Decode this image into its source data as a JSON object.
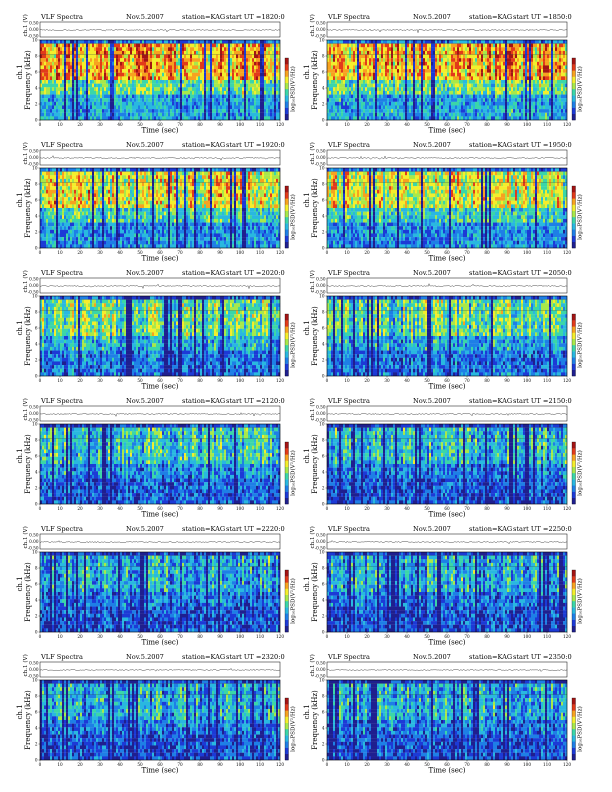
{
  "document": {
    "header_label": "VLF Spectra",
    "date": "Nov.5.2007",
    "station": "station=KAG",
    "start_prefix": "start  UT  ="
  },
  "colormap": [
    "#1f1f8f",
    "#1c3ad6",
    "#1e7fe6",
    "#29b8e0",
    "#3bd6a8",
    "#a8e84a",
    "#f4ee2c",
    "#f7a21f",
    "#e23a1a",
    "#a31414"
  ],
  "chart_data": [
    {
      "type": "heatmap",
      "panel": 1,
      "start_ut": "1820:0",
      "activity": 0.82,
      "xlabel": "Time  (sec)",
      "ylabel_freq": "Frequency  (kHz)",
      "ylabel_ch": "ch.1 (V)",
      "ch_label": "ch.1",
      "colorbar_label": "log₁₀PSD(V²/Hz)",
      "xlim": [
        0,
        120
      ],
      "ylim": [
        0,
        10
      ],
      "x_ticks": [
        "0",
        "10",
        "20",
        "30",
        "40",
        "50",
        "60",
        "70",
        "80",
        "90",
        "100",
        "110",
        "120"
      ],
      "y_ticks": [
        "0",
        "2",
        "4",
        "6",
        "8",
        "10"
      ],
      "v_ticks": [
        "-0.50",
        "0.00",
        "0.50"
      ]
    },
    {
      "type": "heatmap",
      "panel": 2,
      "start_ut": "1850:0",
      "activity": 0.8,
      "xlabel": "Time  (sec)",
      "ylabel_freq": "Frequency  (kHz)",
      "ylabel_ch": "ch.1 (V)",
      "ch_label": "ch.1",
      "colorbar_label": "log₁₀PSD(V²/Hz)",
      "xlim": [
        0,
        120
      ],
      "ylim": [
        0,
        10
      ],
      "x_ticks": [
        "0",
        "10",
        "20",
        "30",
        "40",
        "50",
        "60",
        "70",
        "80",
        "90",
        "100",
        "110",
        "120"
      ],
      "y_ticks": [
        "0",
        "2",
        "4",
        "6",
        "8",
        "10"
      ],
      "v_ticks": [
        "-0.50",
        "0.00",
        "0.50"
      ]
    },
    {
      "type": "heatmap",
      "panel": 3,
      "start_ut": "1920:0",
      "activity": 0.68,
      "xlabel": "Time  (sec)",
      "ylabel_freq": "Frequency  (kHz)",
      "ylabel_ch": "ch.1 (V)",
      "ch_label": "ch.1",
      "colorbar_label": "log₁₀PSD(V²/Hz)",
      "xlim": [
        0,
        120
      ],
      "ylim": [
        0,
        10
      ],
      "x_ticks": [
        "0",
        "10",
        "20",
        "30",
        "40",
        "50",
        "60",
        "70",
        "80",
        "90",
        "100",
        "110",
        "120"
      ],
      "y_ticks": [
        "0",
        "2",
        "4",
        "6",
        "8",
        "10"
      ],
      "v_ticks": [
        "-0.50",
        "0.00",
        "0.50"
      ]
    },
    {
      "type": "heatmap",
      "panel": 4,
      "start_ut": "1950:0",
      "activity": 0.66,
      "xlabel": "Time  (sec)",
      "ylabel_freq": "Frequency  (kHz)",
      "ylabel_ch": "ch.1 (V)",
      "ch_label": "ch.1",
      "colorbar_label": "log₁₀PSD(V²/Hz)",
      "xlim": [
        0,
        120
      ],
      "ylim": [
        0,
        10
      ],
      "x_ticks": [
        "0",
        "10",
        "20",
        "30",
        "40",
        "50",
        "60",
        "70",
        "80",
        "90",
        "100",
        "110",
        "120"
      ],
      "y_ticks": [
        "0",
        "2",
        "4",
        "6",
        "8",
        "10"
      ],
      "v_ticks": [
        "-0.50",
        "0.00",
        "0.50"
      ]
    },
    {
      "type": "heatmap",
      "panel": 5,
      "start_ut": "2020:0",
      "activity": 0.52,
      "xlabel": "Time  (sec)",
      "ylabel_freq": "Frequency  (kHz)",
      "ylabel_ch": "ch.1 (V)",
      "ch_label": "ch.1",
      "colorbar_label": "log₁₀PSD(V²/Hz)",
      "xlim": [
        0,
        120
      ],
      "ylim": [
        0,
        10
      ],
      "x_ticks": [
        "0",
        "10",
        "20",
        "30",
        "40",
        "50",
        "60",
        "70",
        "80",
        "90",
        "100",
        "110",
        "120"
      ],
      "y_ticks": [
        "0",
        "2",
        "4",
        "6",
        "8",
        "10"
      ],
      "v_ticks": [
        "-0.50",
        "0.00",
        "0.50"
      ]
    },
    {
      "type": "heatmap",
      "panel": 6,
      "start_ut": "2050:0",
      "activity": 0.5,
      "xlabel": "Time  (sec)",
      "ylabel_freq": "Frequency  (kHz)",
      "ylabel_ch": "ch.1 (V)",
      "ch_label": "ch.1",
      "colorbar_label": "log₁₀PSD(V²/Hz)",
      "xlim": [
        0,
        120
      ],
      "ylim": [
        0,
        10
      ],
      "x_ticks": [
        "0",
        "10",
        "20",
        "30",
        "40",
        "50",
        "60",
        "70",
        "80",
        "90",
        "100",
        "110",
        "120"
      ],
      "y_ticks": [
        "0",
        "2",
        "4",
        "6",
        "8",
        "10"
      ],
      "v_ticks": [
        "-0.50",
        "0.00",
        "0.50"
      ]
    },
    {
      "type": "heatmap",
      "panel": 7,
      "start_ut": "2120:0",
      "activity": 0.4,
      "xlabel": "Time  (sec)",
      "ylabel_freq": "Frequency  (kHz)",
      "ylabel_ch": "ch.1 (V)",
      "ch_label": "ch.1",
      "colorbar_label": "log₁₀PSD(V²/Hz)",
      "xlim": [
        0,
        120
      ],
      "ylim": [
        0,
        10
      ],
      "x_ticks": [
        "0",
        "10",
        "20",
        "30",
        "40",
        "50",
        "60",
        "70",
        "80",
        "90",
        "100",
        "110",
        "120"
      ],
      "y_ticks": [
        "0",
        "2",
        "4",
        "6",
        "8",
        "10"
      ],
      "v_ticks": [
        "-0.50",
        "0.00",
        "0.50"
      ]
    },
    {
      "type": "heatmap",
      "panel": 8,
      "start_ut": "2150:0",
      "activity": 0.36,
      "xlabel": "Time  (sec)",
      "ylabel_freq": "Frequency  (kHz)",
      "ylabel_ch": "ch.1 (V)",
      "ch_label": "ch.1",
      "colorbar_label": "log₁₀PSD(V²/Hz)",
      "xlim": [
        0,
        120
      ],
      "ylim": [
        0,
        10
      ],
      "x_ticks": [
        "0",
        "10",
        "20",
        "30",
        "40",
        "50",
        "60",
        "70",
        "80",
        "90",
        "100",
        "110",
        "120"
      ],
      "y_ticks": [
        "0",
        "2",
        "4",
        "6",
        "8",
        "10"
      ],
      "v_ticks": [
        "-0.50",
        "0.00",
        "0.50"
      ]
    },
    {
      "type": "heatmap",
      "panel": 9,
      "start_ut": "2220:0",
      "activity": 0.32,
      "xlabel": "Time  (sec)",
      "ylabel_freq": "Frequency  (kHz)",
      "ylabel_ch": "ch.1 (V)",
      "ch_label": "ch.1",
      "colorbar_label": "log₁₀PSD(V²/Hz)",
      "xlim": [
        0,
        120
      ],
      "ylim": [
        0,
        10
      ],
      "x_ticks": [
        "0",
        "10",
        "20",
        "30",
        "40",
        "50",
        "60",
        "70",
        "80",
        "90",
        "100",
        "110",
        "120"
      ],
      "y_ticks": [
        "0",
        "2",
        "4",
        "6",
        "8",
        "10"
      ],
      "v_ticks": [
        "-0.50",
        "0.00",
        "0.50"
      ]
    },
    {
      "type": "heatmap",
      "panel": 10,
      "start_ut": "2250:0",
      "activity": 0.3,
      "xlabel": "Time  (sec)",
      "ylabel_freq": "Frequency  (kHz)",
      "ylabel_ch": "ch.1 (V)",
      "ch_label": "ch.1",
      "colorbar_label": "log₁₀PSD(V²/Hz)",
      "xlim": [
        0,
        120
      ],
      "ylim": [
        0,
        10
      ],
      "x_ticks": [
        "0",
        "10",
        "20",
        "30",
        "40",
        "50",
        "60",
        "70",
        "80",
        "90",
        "100",
        "110",
        "120"
      ],
      "y_ticks": [
        "0",
        "2",
        "4",
        "6",
        "8",
        "10"
      ],
      "v_ticks": [
        "-0.50",
        "0.00",
        "0.50"
      ]
    },
    {
      "type": "heatmap",
      "panel": 11,
      "start_ut": "2320:0",
      "activity": 0.3,
      "xlabel": "Time  (sec)",
      "ylabel_freq": "Frequency  (kHz)",
      "ylabel_ch": "ch.1 (V)",
      "ch_label": "ch.1",
      "colorbar_label": "log₁₀PSD(V²/Hz)",
      "xlim": [
        0,
        120
      ],
      "ylim": [
        0,
        10
      ],
      "x_ticks": [
        "0",
        "10",
        "20",
        "30",
        "40",
        "50",
        "60",
        "70",
        "80",
        "90",
        "100",
        "110",
        "120"
      ],
      "y_ticks": [
        "0",
        "2",
        "4",
        "6",
        "8",
        "10"
      ],
      "v_ticks": [
        "-0.50",
        "0.00",
        "0.50"
      ]
    },
    {
      "type": "heatmap",
      "panel": 12,
      "start_ut": "2350:0",
      "activity": 0.3,
      "xlabel": "Time  (sec)",
      "ylabel_freq": "Frequency  (kHz)",
      "ylabel_ch": "ch.1 (V)",
      "ch_label": "ch.1",
      "colorbar_label": "log₁₀PSD(V²/Hz)",
      "xlim": [
        0,
        120
      ],
      "ylim": [
        0,
        10
      ],
      "x_ticks": [
        "0",
        "10",
        "20",
        "30",
        "40",
        "50",
        "60",
        "70",
        "80",
        "90",
        "100",
        "110",
        "120"
      ],
      "y_ticks": [
        "0",
        "2",
        "4",
        "6",
        "8",
        "10"
      ],
      "v_ticks": [
        "-0.50",
        "0.00",
        "0.50"
      ]
    }
  ]
}
